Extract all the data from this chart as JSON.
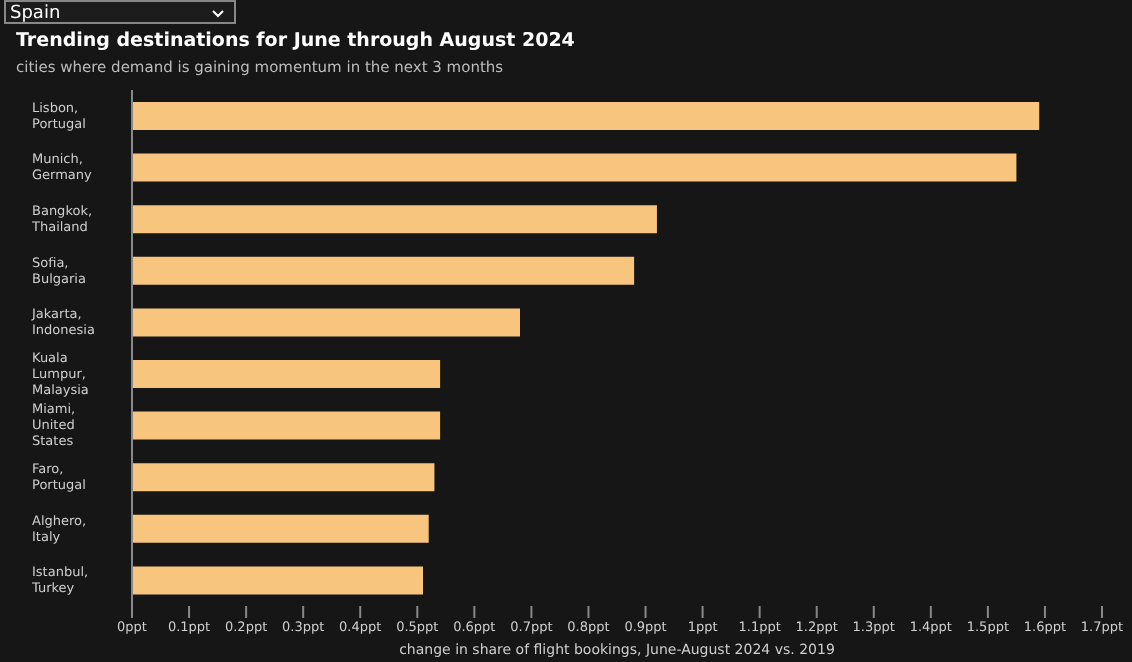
{
  "chart_data": {
    "type": "bar",
    "orientation": "horizontal",
    "title": "Trending destinations for June through August 2024",
    "subtitle": "cities where demand is gaining momentum in the next 3 months",
    "annotations": [
      "Spain"
    ],
    "xlabel": "change in share of flight bookings, June-August 2024 vs. 2019",
    "categories": [
      "Lisbon, Portugal",
      "Munich, Germany",
      "Bangkok, Thailand",
      "Sofia, Bulgaria",
      "Jakarta, Indonesia",
      "Kuala Lumpur, Malaysia",
      "Miami, United States",
      "Faro, Portugal",
      "Alghero, Italy",
      "Istanbul, Turkey"
    ],
    "values": [
      1.59,
      1.55,
      0.92,
      0.88,
      0.68,
      0.54,
      0.54,
      0.53,
      0.52,
      0.51
    ],
    "color": "#f8c57e",
    "xlim": [
      0,
      1.7
    ],
    "xticks": [
      {
        "value": 0,
        "label": "0ppt"
      },
      {
        "value": 0.1,
        "label": "0.1ppt"
      },
      {
        "value": 0.2,
        "label": "0.2ppt"
      },
      {
        "value": 0.3,
        "label": "0.3ppt"
      },
      {
        "value": 0.4,
        "label": "0.4ppt"
      },
      {
        "value": 0.5,
        "label": "0.5ppt"
      },
      {
        "value": 0.6,
        "label": "0.6ppt"
      },
      {
        "value": 0.7,
        "label": "0.7ppt"
      },
      {
        "value": 0.8,
        "label": "0.8ppt"
      },
      {
        "value": 0.9,
        "label": "0.9ppt"
      },
      {
        "value": 1,
        "label": "1ppt"
      },
      {
        "value": 1.1,
        "label": "1.1ppt"
      },
      {
        "value": 1.2,
        "label": "1.2ppt"
      },
      {
        "value": 1.3,
        "label": "1.3ppt"
      },
      {
        "value": 1.4,
        "label": "1.4ppt"
      },
      {
        "value": 1.5,
        "label": "1.5ppt"
      },
      {
        "value": 1.6,
        "label": "1.6ppt"
      },
      {
        "value": 1.7,
        "label": "1.7ppt"
      }
    ],
    "grid": false,
    "legend": false
  }
}
